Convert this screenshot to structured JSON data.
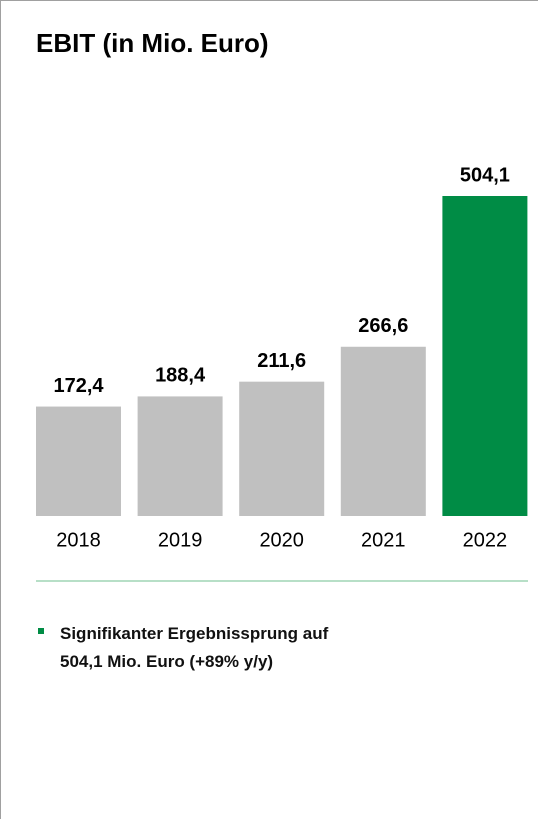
{
  "chart_data": {
    "type": "bar",
    "title": "EBIT (in Mio. Euro)",
    "categories": [
      "2018",
      "2019",
      "2020",
      "2021",
      "2022"
    ],
    "values": [
      172.4,
      188.4,
      211.6,
      266.6,
      504.1
    ],
    "value_labels": [
      "172,4",
      "188,4",
      "211,6",
      "266,6",
      "504,1"
    ],
    "colors": [
      "#c0c0c0",
      "#c0c0c0",
      "#c0c0c0",
      "#c0c0c0",
      "#008c45"
    ],
    "note": "Signifikanter Ergebnissprung auf 504,1 Mio. Euro (+89% y/y)"
  }
}
